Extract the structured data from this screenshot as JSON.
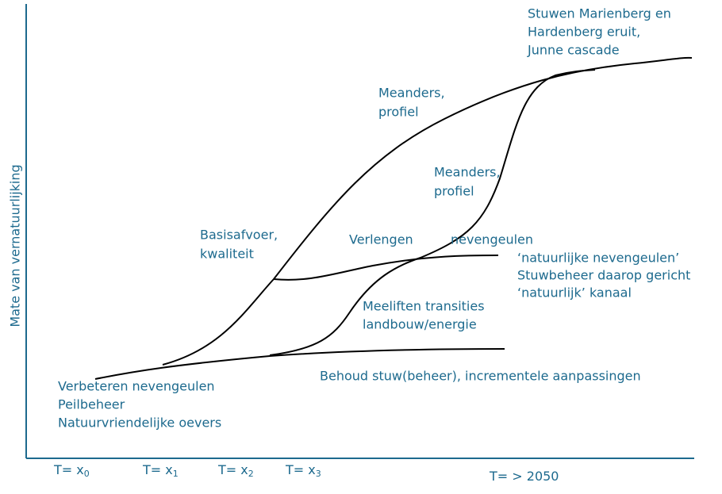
{
  "axis": {
    "y_label": "Mate van vernatuurlijking"
  },
  "time_labels": [
    {
      "text": "T= x",
      "sub": "0"
    },
    {
      "text": "T= x",
      "sub": "1"
    },
    {
      "text": "T= x",
      "sub": "2"
    },
    {
      "text": "T= x",
      "sub": "3"
    },
    {
      "text": "T= > 2050"
    }
  ],
  "annotations": {
    "stuwen": [
      "Stuwen Marienberg en",
      "Hardenberg eruit,",
      "Junne cascade"
    ],
    "meanders_1": [
      "Meanders,",
      "profiel"
    ],
    "meanders_2": [
      "Meanders,",
      "profiel"
    ],
    "basisafvoer": [
      "Basisafvoer,",
      "kwaliteit"
    ],
    "verlengen": [
      "Verlengen",
      "nevengeulen"
    ],
    "natuurlijk": [
      "‘natuurlijke nevengeulen’",
      "Stuwbeheer daarop gericht",
      "‘natuurlijk’ kanaal"
    ],
    "meeliften": [
      "Meeliften transities",
      "landbouw/energie"
    ],
    "behoud": [
      "Behoud stuw(beheer), incrementele aanpassingen"
    ],
    "verbeteren": [
      "Verbeteren nevengeulen",
      "Peilbeheer",
      "Natuurvriendelijke oevers"
    ]
  }
}
